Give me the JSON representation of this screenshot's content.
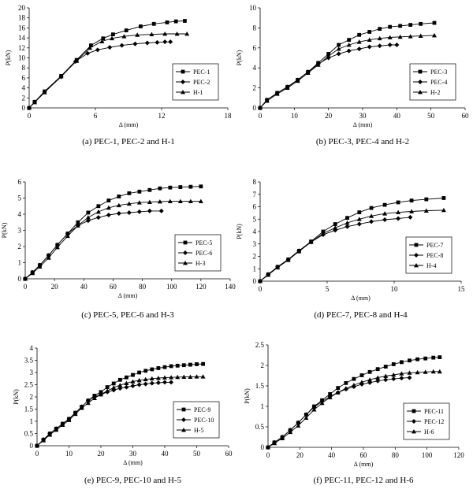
{
  "chart_data": [
    {
      "type": "line",
      "caption": "(a) PEC-1, PEC-2 and H-1",
      "xlabel": "Δ (mm)",
      "ylabel": "P(kN)",
      "xlim": [
        0,
        18
      ],
      "ylim": [
        0,
        20
      ],
      "xticks": [
        0,
        6,
        12,
        18
      ],
      "yticks": [
        0,
        2,
        4,
        6,
        8,
        10,
        12,
        14,
        16,
        18,
        20
      ],
      "grid": false,
      "legend": "lower-right",
      "series": [
        {
          "name": "PEC-1",
          "marker": "square",
          "x": [
            0,
            0.5,
            1.4,
            2.9,
            4.3,
            5.6,
            6.7,
            7.6,
            8.8,
            10.1,
            11.3,
            12.5,
            13.3,
            14.1
          ],
          "y": [
            0,
            1.2,
            3.3,
            6.4,
            9.6,
            12.5,
            13.9,
            14.7,
            15.5,
            16.3,
            16.8,
            17.1,
            17.3,
            17.4
          ]
        },
        {
          "name": "PEC-2",
          "marker": "diamond",
          "x": [
            0,
            0.5,
            1.4,
            2.9,
            4.2,
            5.3,
            6.2,
            7.3,
            8.4,
            9.6,
            10.7,
            11.6,
            12.3,
            12.8
          ],
          "y": [
            0,
            1.2,
            3.2,
            6.2,
            9.3,
            10.9,
            11.6,
            12.1,
            12.5,
            12.8,
            13.0,
            13.1,
            13.2,
            13.2
          ]
        },
        {
          "name": "H-1",
          "marker": "triangle",
          "x": [
            0,
            0.5,
            1.4,
            2.9,
            4.3,
            5.5,
            6.6,
            7.5,
            8.6,
            9.8,
            11.1,
            12.3,
            13.4,
            14.3
          ],
          "y": [
            0,
            1.1,
            3.1,
            6.3,
            9.4,
            12.0,
            13.3,
            13.9,
            14.3,
            14.6,
            14.7,
            14.8,
            14.8,
            14.8
          ]
        }
      ]
    },
    {
      "type": "line",
      "caption": "(b) PEC-3, PEC-4 and H-2",
      "xlabel": "Δ (mm)",
      "ylabel": "P(kN)",
      "xlim": [
        0,
        60
      ],
      "ylim": [
        0,
        10
      ],
      "xticks": [
        0,
        10,
        20,
        30,
        40,
        50,
        60
      ],
      "yticks": [
        0,
        2,
        4,
        6,
        8,
        10
      ],
      "grid": false,
      "legend": "lower-right",
      "series": [
        {
          "name": "PEC-3",
          "marker": "square",
          "x": [
            0,
            2,
            5,
            8,
            11,
            14,
            17,
            20,
            23,
            26,
            29,
            32,
            35,
            38,
            41,
            44,
            47,
            51
          ],
          "y": [
            0,
            0.8,
            1.5,
            2.1,
            2.8,
            3.6,
            4.5,
            5.4,
            6.3,
            6.8,
            7.3,
            7.6,
            7.9,
            8.1,
            8.2,
            8.3,
            8.4,
            8.5
          ]
        },
        {
          "name": "PEC-4",
          "marker": "diamond",
          "x": [
            0,
            2,
            5,
            8,
            11,
            14,
            17,
            20,
            23,
            26,
            29,
            32,
            35,
            38,
            40
          ],
          "y": [
            0,
            0.8,
            1.5,
            2.1,
            2.8,
            3.6,
            4.4,
            5.0,
            5.4,
            5.7,
            5.9,
            6.1,
            6.2,
            6.3,
            6.3
          ]
        },
        {
          "name": "H-2",
          "marker": "triangle",
          "x": [
            0,
            2,
            5,
            8,
            11,
            14,
            17,
            20,
            23,
            26,
            29,
            32,
            35,
            38,
            41,
            44,
            47,
            51
          ],
          "y": [
            0,
            0.7,
            1.4,
            2.0,
            2.7,
            3.5,
            4.3,
            5.2,
            5.9,
            6.3,
            6.6,
            6.8,
            6.95,
            7.05,
            7.1,
            7.15,
            7.2,
            7.25
          ]
        }
      ]
    },
    {
      "type": "line",
      "caption": "(c) PEC-5, PEC-6 and H-3",
      "xlabel": "Δ (mm)",
      "ylabel": "P(kN)",
      "xlim": [
        0,
        140
      ],
      "ylim": [
        0,
        6
      ],
      "xticks": [
        0,
        20,
        40,
        60,
        80,
        100,
        120,
        140
      ],
      "yticks": [
        0,
        1,
        2,
        3,
        4,
        5,
        6
      ],
      "grid": false,
      "legend": "lower-right",
      "series": [
        {
          "name": "PEC-5",
          "marker": "square",
          "x": [
            0,
            5,
            10,
            16,
            22,
            29,
            36,
            43,
            50,
            57,
            64,
            71,
            78,
            85,
            92,
            99,
            106,
            113,
            120
          ],
          "y": [
            0,
            0.4,
            0.85,
            1.45,
            2.1,
            2.8,
            3.5,
            4.1,
            4.5,
            4.85,
            5.1,
            5.3,
            5.4,
            5.5,
            5.6,
            5.65,
            5.68,
            5.7,
            5.72
          ]
        },
        {
          "name": "PEC-6",
          "marker": "diamond",
          "x": [
            0,
            5,
            10,
            16,
            22,
            29,
            36,
            43,
            50,
            57,
            64,
            71,
            78,
            85,
            93
          ],
          "y": [
            0,
            0.4,
            0.85,
            1.45,
            2.1,
            2.8,
            3.3,
            3.6,
            3.8,
            3.95,
            4.05,
            4.1,
            4.15,
            4.2,
            4.2
          ]
        },
        {
          "name": "H-3",
          "marker": "triangle",
          "x": [
            0,
            5,
            10,
            16,
            22,
            29,
            36,
            43,
            50,
            57,
            64,
            71,
            78,
            85,
            92,
            99,
            106,
            113,
            120
          ],
          "y": [
            0,
            0.35,
            0.75,
            1.3,
            1.95,
            2.65,
            3.3,
            3.8,
            4.15,
            4.4,
            4.55,
            4.65,
            4.72,
            4.75,
            4.78,
            4.8,
            4.8,
            4.8,
            4.8
          ]
        }
      ]
    },
    {
      "type": "line",
      "caption": "(d) PEC-7, PEC-8 and H-4",
      "xlabel": "Δ (mm)",
      "ylabel": "P(kN)",
      "xlim": [
        0,
        15
      ],
      "ylim": [
        0,
        8
      ],
      "xticks": [
        0,
        5,
        10,
        15
      ],
      "yticks": [
        0,
        1,
        2,
        3,
        4,
        5,
        6,
        7,
        8
      ],
      "grid": false,
      "legend": "lower-right",
      "series": [
        {
          "name": "PEC-7",
          "marker": "square",
          "x": [
            0,
            0.6,
            1.3,
            2.1,
            2.9,
            3.8,
            4.7,
            5.6,
            6.5,
            7.4,
            8.3,
            9.3,
            10.3,
            11.3,
            12.4,
            13.7
          ],
          "y": [
            0,
            0.55,
            1.15,
            1.75,
            2.45,
            3.2,
            4.0,
            4.6,
            5.1,
            5.55,
            5.9,
            6.15,
            6.35,
            6.5,
            6.6,
            6.7
          ]
        },
        {
          "name": "PEC-8",
          "marker": "diamond",
          "x": [
            0,
            0.6,
            1.3,
            2.1,
            2.9,
            3.8,
            4.7,
            5.6,
            6.5,
            7.4,
            8.3,
            9.3,
            10.3,
            11.2
          ],
          "y": [
            0,
            0.55,
            1.15,
            1.75,
            2.45,
            3.15,
            3.75,
            4.1,
            4.4,
            4.6,
            4.8,
            4.95,
            5.05,
            5.15
          ]
        },
        {
          "name": "H-4",
          "marker": "triangle",
          "x": [
            0,
            0.6,
            1.3,
            2.1,
            2.9,
            3.8,
            4.7,
            5.6,
            6.5,
            7.4,
            8.3,
            9.3,
            10.3,
            11.3,
            12.4,
            13.7
          ],
          "y": [
            0,
            0.5,
            1.1,
            1.7,
            2.4,
            3.15,
            3.85,
            4.3,
            4.7,
            5.0,
            5.25,
            5.45,
            5.55,
            5.62,
            5.68,
            5.72
          ]
        }
      ]
    },
    {
      "type": "line",
      "caption": "(e) PEC-9, PEC-10 and H-5",
      "xlabel": "Δ (mm)",
      "ylabel": "P(kN)",
      "xlim": [
        0,
        60
      ],
      "ylim": [
        0,
        4
      ],
      "xticks": [
        0,
        10,
        20,
        30,
        40,
        50,
        60
      ],
      "yticks": [
        0,
        0.5,
        1,
        1.5,
        2,
        2.5,
        3,
        3.5,
        4
      ],
      "yticklabels": [
        "0",
        "0.5",
        "1",
        "1.5",
        "2",
        "2.5",
        "3",
        "3.5",
        "4"
      ],
      "grid": false,
      "legend": "lower-right",
      "series": [
        {
          "name": "PEC-9",
          "marker": "square",
          "x": [
            0,
            2,
            4,
            6,
            8,
            10,
            12,
            14,
            16,
            18,
            20,
            22,
            24,
            26,
            28,
            30,
            32,
            34,
            36,
            38,
            40,
            42,
            44,
            46,
            48,
            50,
            52
          ],
          "y": [
            0,
            0.25,
            0.5,
            0.7,
            0.9,
            1.1,
            1.35,
            1.6,
            1.85,
            2.05,
            2.2,
            2.4,
            2.55,
            2.7,
            2.8,
            2.9,
            3.0,
            3.07,
            3.13,
            3.18,
            3.22,
            3.26,
            3.28,
            3.3,
            3.32,
            3.34,
            3.35
          ]
        },
        {
          "name": "PEC-10",
          "marker": "diamond",
          "x": [
            0,
            2,
            4,
            6,
            8,
            10,
            12,
            14,
            16,
            18,
            20,
            22,
            24,
            26,
            28,
            30,
            32,
            34,
            36,
            38,
            40,
            42
          ],
          "y": [
            0,
            0.25,
            0.5,
            0.7,
            0.9,
            1.1,
            1.35,
            1.6,
            1.85,
            2.0,
            2.1,
            2.2,
            2.28,
            2.35,
            2.4,
            2.45,
            2.5,
            2.53,
            2.56,
            2.58,
            2.6,
            2.6
          ]
        },
        {
          "name": "H-5",
          "marker": "triangle",
          "x": [
            0,
            2,
            4,
            6,
            8,
            10,
            12,
            14,
            16,
            18,
            20,
            22,
            24,
            26,
            28,
            30,
            32,
            34,
            36,
            38,
            40,
            42,
            44,
            46,
            48,
            50,
            52
          ],
          "y": [
            0,
            0.22,
            0.45,
            0.65,
            0.85,
            1.05,
            1.3,
            1.55,
            1.75,
            1.95,
            2.1,
            2.25,
            2.38,
            2.48,
            2.56,
            2.63,
            2.68,
            2.72,
            2.75,
            2.77,
            2.79,
            2.8,
            2.81,
            2.82,
            2.82,
            2.83,
            2.83
          ]
        }
      ]
    },
    {
      "type": "line",
      "caption": "(f) PEC-11, PEC-12 and H-6",
      "xlabel": "Δ (mm)",
      "ylabel": "P(kN)",
      "xlim": [
        0,
        120
      ],
      "ylim": [
        0,
        2.5
      ],
      "xticks": [
        0,
        20,
        40,
        60,
        80,
        100,
        120
      ],
      "yticks": [
        0,
        0.5,
        1,
        1.5,
        2,
        2.5
      ],
      "yticklabels": [
        "0",
        "0.5",
        "1",
        "1.5",
        "2",
        "2.5"
      ],
      "grid": false,
      "legend": "lower-right",
      "series": [
        {
          "name": "PEC-11",
          "marker": "square",
          "x": [
            0,
            4,
            9,
            14,
            19,
            24,
            29,
            34,
            39,
            44,
            49,
            54,
            59,
            64,
            69,
            74,
            79,
            84,
            89,
            94,
            99,
            104,
            108
          ],
          "y": [
            0,
            0.12,
            0.25,
            0.42,
            0.6,
            0.8,
            1.0,
            1.15,
            1.3,
            1.45,
            1.57,
            1.67,
            1.76,
            1.84,
            1.91,
            1.97,
            2.03,
            2.08,
            2.12,
            2.15,
            2.17,
            2.19,
            2.2
          ]
        },
        {
          "name": "PEC-12",
          "marker": "diamond",
          "x": [
            0,
            4,
            9,
            14,
            19,
            24,
            29,
            34,
            39,
            44,
            49,
            54,
            59,
            64,
            69,
            74,
            79,
            84,
            89
          ],
          "y": [
            0,
            0.12,
            0.25,
            0.42,
            0.6,
            0.8,
            0.98,
            1.12,
            1.24,
            1.34,
            1.42,
            1.48,
            1.54,
            1.58,
            1.62,
            1.65,
            1.67,
            1.69,
            1.7
          ]
        },
        {
          "name": "H-6",
          "marker": "triangle",
          "x": [
            0,
            4,
            9,
            14,
            19,
            24,
            29,
            34,
            39,
            44,
            49,
            54,
            59,
            64,
            69,
            74,
            79,
            84,
            89,
            94,
            99,
            104,
            108
          ],
          "y": [
            0,
            0.1,
            0.22,
            0.37,
            0.53,
            0.72,
            0.92,
            1.08,
            1.22,
            1.34,
            1.44,
            1.52,
            1.59,
            1.65,
            1.7,
            1.74,
            1.77,
            1.8,
            1.82,
            1.83,
            1.84,
            1.85,
            1.85
          ]
        }
      ]
    }
  ]
}
